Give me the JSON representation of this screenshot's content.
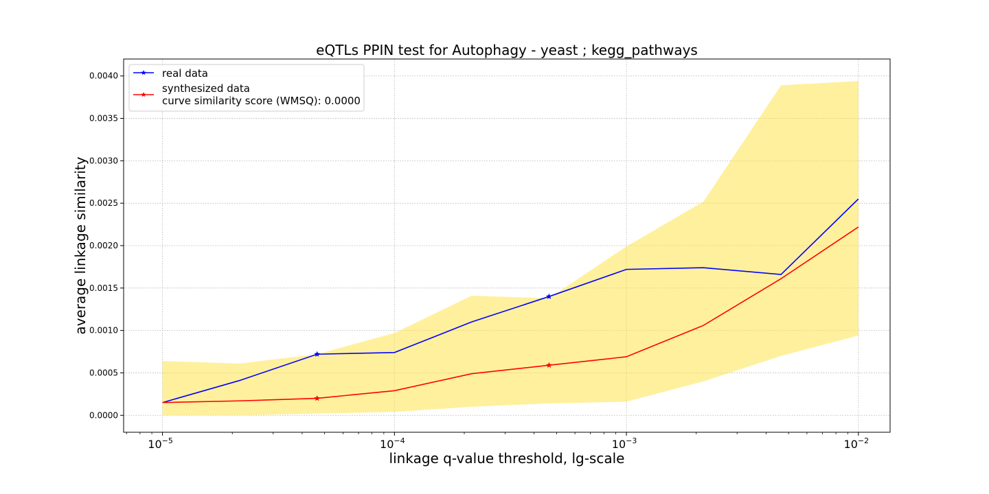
{
  "chart_data": {
    "type": "line",
    "title": "eQTLs PPIN test for Autophagy - yeast ; kegg_pathways",
    "xlabel": "linkage q-value threshold, lg-scale",
    "ylabel": "average linkage similarity",
    "xscale": "log10",
    "xlim": [
      6.8e-06,
      0.0137
    ],
    "ylim": [
      -0.0002,
      0.0042
    ],
    "grid": true,
    "legend_position": "top-left",
    "x": [
      1e-05,
      2.15e-05,
      4.64e-05,
      0.0001,
      0.000215,
      0.000464,
      0.001,
      0.00215,
      0.00464,
      0.01
    ],
    "x_ticks": [
      {
        "value": 1e-05,
        "base": "10",
        "exp": "−5"
      },
      {
        "value": 0.0001,
        "base": "10",
        "exp": "−4"
      },
      {
        "value": 0.001,
        "base": "10",
        "exp": "−3"
      },
      {
        "value": 0.01,
        "base": "10",
        "exp": "−2"
      }
    ],
    "y_ticks": [
      {
        "value": 0.0,
        "label": "0.0000"
      },
      {
        "value": 0.0005,
        "label": "0.0005"
      },
      {
        "value": 0.001,
        "label": "0.0010"
      },
      {
        "value": 0.0015,
        "label": "0.0015"
      },
      {
        "value": 0.002,
        "label": "0.0020"
      },
      {
        "value": 0.0025,
        "label": "0.0025"
      },
      {
        "value": 0.003,
        "label": "0.0030"
      },
      {
        "value": 0.0035,
        "label": "0.0035"
      },
      {
        "value": 0.004,
        "label": "0.0040"
      }
    ],
    "series": [
      {
        "name": "real data",
        "color": "#0000ff",
        "marker": "star",
        "marker_indices": [
          2,
          5
        ],
        "values": [
          0.00015,
          0.00041,
          0.00072,
          0.00074,
          0.0011,
          0.0014,
          0.00172,
          0.00174,
          0.00166,
          0.00255
        ]
      },
      {
        "name": "synthesized data",
        "color": "#ff0000",
        "marker": "star",
        "marker_indices": [
          2,
          5
        ],
        "values": [
          0.00015,
          0.00017,
          0.0002,
          0.00029,
          0.00049,
          0.00059,
          0.00069,
          0.00106,
          0.00161,
          0.00222
        ]
      }
    ],
    "band": {
      "color": "#ffe34d",
      "opacity": 0.55,
      "lower": [
        0.0,
        0.0,
        2e-05,
        4e-05,
        0.0001,
        0.00014,
        0.00016,
        0.0004,
        0.0007,
        0.00094
      ],
      "upper": [
        0.00064,
        0.00061,
        0.00072,
        0.00097,
        0.00141,
        0.00138,
        0.00199,
        0.00252,
        0.00389,
        0.00394
      ]
    },
    "legend": [
      {
        "text": "real data",
        "color": "#0000ff"
      },
      {
        "text": "synthesized data",
        "color": "#ff0000",
        "extra": "curve similarity score (WMSQ): 0.0000"
      }
    ]
  }
}
